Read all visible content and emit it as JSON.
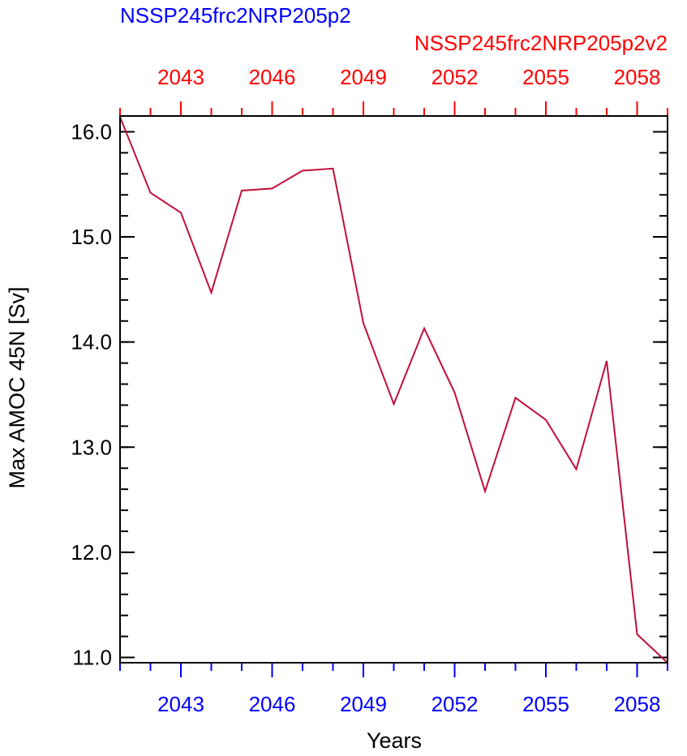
{
  "colors": {
    "bottom_axis": "#0000ff",
    "top_axis": "#ff0000",
    "line": "#c0103a",
    "frame": "#000000",
    "left_axis": "#000000"
  },
  "chart_data": {
    "type": "line",
    "title_left": "NSSP245frc2NRP205p2",
    "title_right": "NSSP245frc2NRP205p2v2",
    "xlabel": "Years",
    "ylabel": "Max AMOC 45N [Sv]",
    "xlim": [
      2041,
      2059
    ],
    "ylim": [
      10.95,
      16.15
    ],
    "x_ticks_major": [
      2043,
      2046,
      2049,
      2052,
      2055,
      2058
    ],
    "x_tick_labels": [
      "2043",
      "2046",
      "2049",
      "2052",
      "2055",
      "2058"
    ],
    "y_ticks_major": [
      11.0,
      12.0,
      13.0,
      14.0,
      15.0,
      16.0
    ],
    "y_tick_labels": [
      "11.0",
      "12.0",
      "13.0",
      "14.0",
      "15.0",
      "16.0"
    ],
    "y_minor_step": 0.2,
    "series": [
      {
        "x": [
          2041,
          2042,
          2043,
          2044,
          2045,
          2046,
          2047,
          2048,
          2049,
          2050,
          2051,
          2052,
          2053,
          2054,
          2055,
          2056,
          2057,
          2058,
          2059
        ],
        "values": [
          16.14,
          15.42,
          15.23,
          14.47,
          15.44,
          15.46,
          15.63,
          15.65,
          14.18,
          13.41,
          14.13,
          13.52,
          12.58,
          13.47,
          13.26,
          12.79,
          13.82,
          11.22,
          10.95
        ]
      }
    ]
  }
}
